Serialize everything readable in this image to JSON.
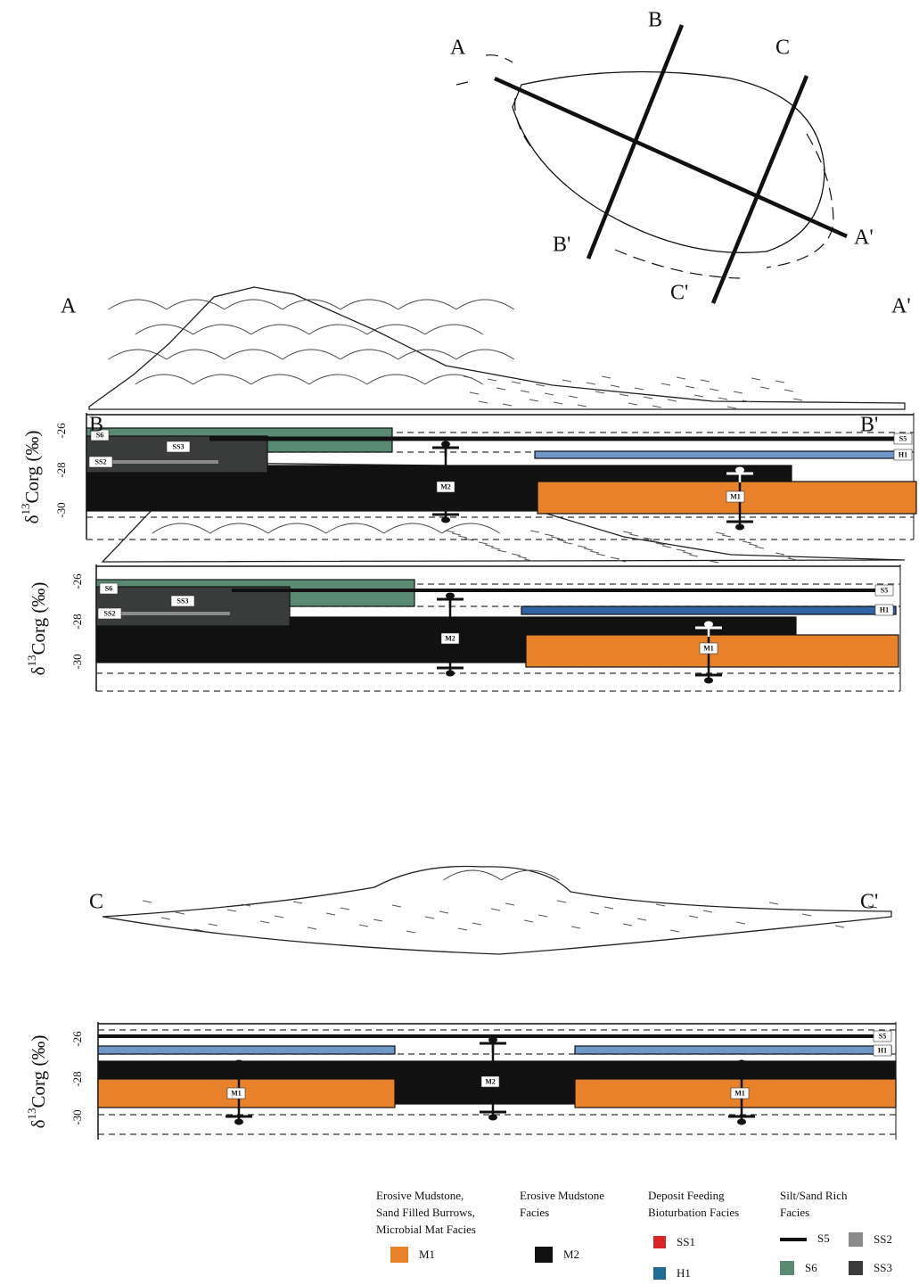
{
  "map": {
    "labels": [
      "A",
      "B",
      "C",
      "A'",
      "B'",
      "C'"
    ]
  },
  "sections": [
    {
      "start": "A",
      "end": "A'",
      "axis_label": {
        "prefix": "δ",
        "sup": "13",
        "main": "Corg (‰)"
      },
      "yticks": [
        -26,
        -28,
        -30
      ],
      "facies": [
        "S6",
        "SS3",
        "SS2",
        "S5",
        "H1",
        "M2",
        "M1"
      ]
    },
    {
      "start": "B",
      "end": "B'",
      "axis_label": {
        "prefix": "δ",
        "sup": "13",
        "main": "Corg (‰)"
      },
      "yticks": [
        -26,
        -28,
        -30
      ],
      "facies": [
        "S6",
        "SS3",
        "SS2",
        "S5",
        "H1",
        "M2",
        "M1"
      ]
    },
    {
      "start": "C",
      "end": "C'",
      "axis_label": {
        "prefix": "δ",
        "sup": "13",
        "main": "Corg (‰)"
      },
      "yticks": [
        -26,
        -28,
        -30
      ],
      "facies": [
        "S5",
        "H1",
        "M2",
        "M1",
        "M1"
      ]
    }
  ],
  "legend": [
    {
      "title": [
        "Erosive Mudstone,",
        "Sand Filled Burrows,",
        "Microbial Mat Facies"
      ],
      "items": [
        "M1"
      ]
    },
    {
      "title": [
        "Erosive Mudstone",
        "Facies"
      ],
      "items": [
        "M2"
      ]
    },
    {
      "title": [
        "Deposit Feeding",
        "Bioturbation Facies"
      ],
      "items": [
        "SS1",
        "H1"
      ]
    },
    {
      "title": [
        "Silt/Sand Rich",
        "Facies"
      ],
      "items": [
        "S5",
        "SS2",
        "S6",
        "SS3"
      ]
    }
  ]
}
